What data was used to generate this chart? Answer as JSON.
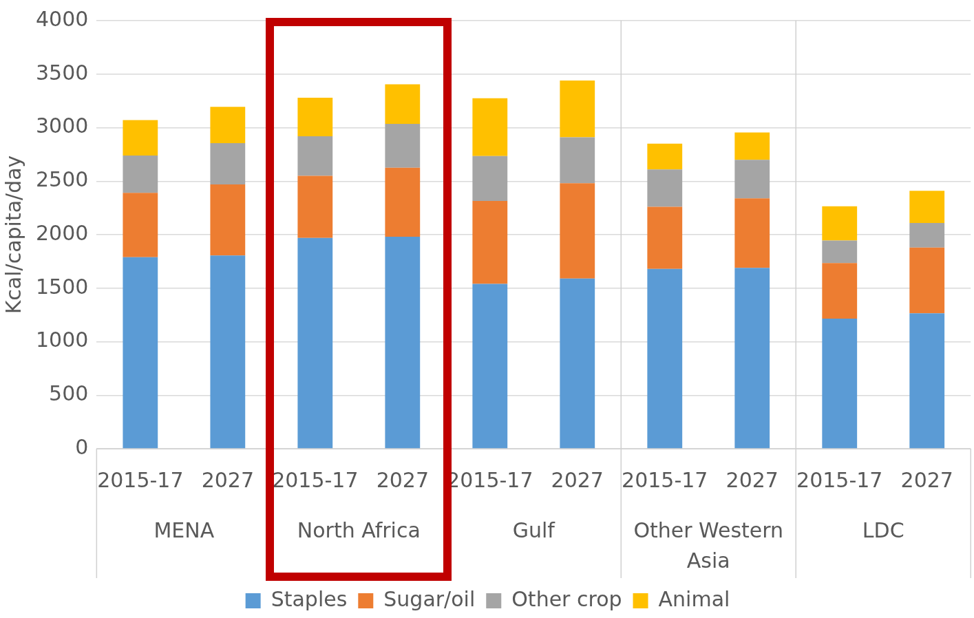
{
  "chart_data": {
    "type": "bar",
    "stacked": true,
    "ylabel": "Kcal/capita/day",
    "categories": [
      "2015-17",
      "2027",
      "2015-17",
      "2027",
      "2015-17",
      "2027",
      "2015-17",
      "2027",
      "2015-17",
      "2027"
    ],
    "annotations": [
      "MENA",
      "North Africa",
      "Gulf",
      "Other Western Asia",
      "LDC"
    ],
    "series": [
      {
        "name": "Staples",
        "color": "#5b9bd5",
        "values": [
          1790,
          1805,
          1970,
          1980,
          1540,
          1590,
          1680,
          1690,
          1215,
          1265
        ]
      },
      {
        "name": "Sugar/oil",
        "color": "#ed7d31",
        "values": [
          600,
          665,
          580,
          645,
          775,
          890,
          580,
          650,
          520,
          615
        ]
      },
      {
        "name": "Other crop",
        "color": "#a5a5a5",
        "values": [
          350,
          385,
          370,
          410,
          420,
          430,
          350,
          360,
          210,
          230
        ]
      },
      {
        "name": "Animal",
        "color": "#ffc000",
        "values": [
          330,
          340,
          360,
          370,
          540,
          530,
          240,
          255,
          320,
          300
        ]
      }
    ],
    "ylim": [
      0,
      4000
    ],
    "yticks": [
      0,
      500,
      1000,
      1500,
      2000,
      2500,
      3000,
      3500,
      4000
    ],
    "grid": "y",
    "legend": "bottom"
  }
}
